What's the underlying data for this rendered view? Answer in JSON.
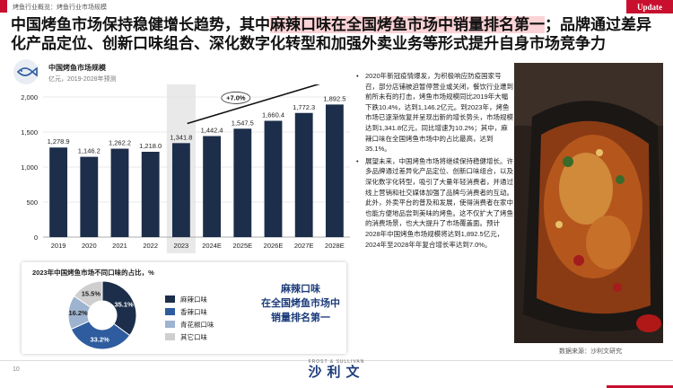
{
  "breadcrumb": "烤鱼行业概览：烤鱼行业市场规模",
  "badge": "Update",
  "headline": {
    "part1": "中国烤鱼市场保持稳健增长趋势，其中",
    "highlight": "麻辣口味在全国烤鱼市场中销量排名第一",
    "part2": "；品牌通过差异化产品定位、创新口味组合、深化数字化转型和加强外卖业务等形式提升自身市场竞争力"
  },
  "bar_chart": {
    "title": "中国烤鱼市场规模",
    "subtitle": "亿元，2019-2028年预测",
    "cagr_label": "+7.0%"
  },
  "donut": {
    "title": "2023年中国烤鱼市场不同口味的占比，%",
    "callout": [
      "麻辣口味",
      "在全国烤鱼市场中",
      "销量排名第一"
    ]
  },
  "chart_data": [
    {
      "type": "bar",
      "title": "中国烤鱼市场规模",
      "subtitle": "亿元，2019-2028年预测",
      "categories": [
        "2019",
        "2020",
        "2021",
        "2022",
        "2023",
        "2024E",
        "2025E",
        "2026E",
        "2027E",
        "2028E"
      ],
      "values": [
        1278.9,
        1146.2,
        1262.2,
        1218.0,
        1341.8,
        1442.4,
        1547.5,
        1660.4,
        1772.3,
        1892.5
      ],
      "value_labels": [
        "1,278.9",
        "1,146.2",
        "1,262.2",
        "1,218.0",
        "1,341.8",
        "1,442.4",
        "1,547.5",
        "1,660.4",
        "1,772.3",
        "1,892.5"
      ],
      "yticks": [
        "0",
        "500",
        "1,000",
        "1,500",
        "2,000"
      ],
      "ylim": [
        0,
        2000
      ],
      "grid": true,
      "highlight_category": "2023",
      "annotation": "+7.0%",
      "colors": {
        "bar": "#1c2e4a",
        "highlight_bg": "#e9e9e9"
      }
    },
    {
      "type": "pie",
      "title": "2023年中国烤鱼市场不同口味的占比，%",
      "categories": [
        "麻辣口味",
        "香辣口味",
        "青花椒口味",
        "其它口味"
      ],
      "values": [
        35.1,
        33.2,
        16.2,
        15.5
      ],
      "value_labels": [
        "35.1%",
        "33.2%",
        "16.2%",
        "15.5%"
      ],
      "colors": [
        "#1c2e4a",
        "#2e5c9e",
        "#9db3cf",
        "#cfcfcf"
      ]
    }
  ],
  "bullets": [
    "2020年新冠疫情爆发，为积极响应防疫国家号召，部分店铺被迫暂停营业或关闭，餐饮行业遭到前所未有的打击，烤鱼市场规模同比2019年大幅下跌10.4%，达到1,146.2亿元。到2023年，烤鱼市场已逐渐恢复并呈现出新的增长势头，市场规模达到1,341.8亿元，同比增速为10.2%；其中，麻辣口味在全国烤鱼市场中的占比最高，达到35.1%。",
    "展望未来，中国烤鱼市场将继续保持稳健增长。许多品牌通过差异化产品定位、创新口味组合，以及深化数字化转型，吸引了大量年轻消费者，并通过线上营销和社交媒体加强了品牌与消费者的互动。此外，外卖平台的普及和发展，使得消费者在家中也能方便地品尝到美味的烤鱼。这不仅扩大了烤鱼的消费场景，也大大提升了市场覆盖面。预计2028年中国烤鱼市场规模将达到1,892.5亿元，2024年至2028年年复合增长率达到7.0%。"
  ],
  "source": "数据来源：沙利文研究",
  "page_number": "10",
  "logo": {
    "top": "FROST & SULLIVAN",
    "main": "沙利文"
  }
}
